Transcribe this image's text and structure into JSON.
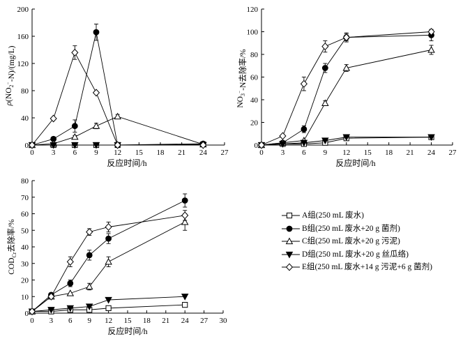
{
  "series_meta": [
    {
      "id": "A",
      "marker": "square-open"
    },
    {
      "id": "B",
      "marker": "circle-filled"
    },
    {
      "id": "C",
      "marker": "triangle-open"
    },
    {
      "id": "D",
      "marker": "triangle-down-filled"
    },
    {
      "id": "E",
      "marker": "diamond-open"
    }
  ],
  "legend": [
    {
      "id": "A",
      "label": "A组(250 mL 废水)"
    },
    {
      "id": "B",
      "label": "B组(250 mL 废水+20 g 菌剂)"
    },
    {
      "id": "C",
      "label": "C组(250 mL 废水+20 g 污泥)"
    },
    {
      "id": "D",
      "label": "D组(250 mL 废水+20 g 丝瓜络)"
    },
    {
      "id": "E",
      "label": "E组(250 mL 废水+14 g 污泥+6 g 菌剂)"
    }
  ],
  "chart_data": [
    {
      "type": "line",
      "ylabel": "ρ(NO₂⁻-N)/(mg/L)",
      "xlabel": "反应时间/h",
      "xlim": [
        0,
        27
      ],
      "ylim": [
        0,
        200
      ],
      "xticks": [
        0,
        3,
        6,
        9,
        12,
        15,
        18,
        21,
        24,
        27
      ],
      "yticks": [
        0,
        40,
        80,
        120,
        160,
        200
      ],
      "series": [
        {
          "name": "A",
          "x": [
            0,
            3,
            6,
            9,
            12,
            24
          ],
          "y": [
            0,
            0,
            0,
            0,
            0,
            1
          ],
          "err": [
            0,
            0,
            0,
            0,
            0,
            0
          ]
        },
        {
          "name": "B",
          "x": [
            0,
            3,
            6,
            9,
            12,
            24
          ],
          "y": [
            0,
            9,
            28,
            166,
            0,
            2
          ],
          "err": [
            0,
            2,
            9,
            12,
            0,
            0
          ]
        },
        {
          "name": "C",
          "x": [
            0,
            3,
            6,
            9,
            12,
            24
          ],
          "y": [
            0,
            2,
            12,
            28,
            42,
            1
          ],
          "err": [
            0,
            0,
            2,
            4,
            3,
            0
          ]
        },
        {
          "name": "D",
          "x": [
            0,
            3,
            6,
            9,
            12,
            24
          ],
          "y": [
            0,
            0,
            0,
            0,
            0,
            0
          ],
          "err": [
            0,
            0,
            0,
            0,
            0,
            0
          ]
        },
        {
          "name": "E",
          "x": [
            0,
            3,
            6,
            9,
            12,
            24
          ],
          "y": [
            0,
            39,
            136,
            77,
            0,
            0
          ],
          "err": [
            0,
            0,
            10,
            0,
            0,
            0
          ]
        }
      ]
    },
    {
      "type": "line",
      "ylabel": "NO₃⁻-N去除率/%",
      "xlabel": "反应时间/h",
      "xlim": [
        0,
        27
      ],
      "ylim": [
        0,
        120
      ],
      "xticks": [
        0,
        3,
        6,
        9,
        12,
        15,
        18,
        21,
        24,
        27
      ],
      "yticks": [
        0,
        20,
        40,
        60,
        80,
        100,
        120
      ],
      "series": [
        {
          "name": "A",
          "x": [
            0,
            3,
            6,
            9,
            12,
            24
          ],
          "y": [
            0,
            1,
            1,
            2,
            6,
            7
          ],
          "err": [
            0,
            0,
            0,
            0,
            0,
            0
          ]
        },
        {
          "name": "B",
          "x": [
            0,
            3,
            6,
            9,
            12,
            24
          ],
          "y": [
            0,
            2,
            14,
            68,
            95,
            97
          ],
          "err": [
            0,
            0,
            3,
            4,
            3,
            5
          ]
        },
        {
          "name": "C",
          "x": [
            0,
            3,
            6,
            9,
            12,
            24
          ],
          "y": [
            0,
            2,
            4,
            37,
            68,
            84
          ],
          "err": [
            0,
            0,
            0,
            2,
            3,
            4
          ]
        },
        {
          "name": "D",
          "x": [
            0,
            3,
            6,
            9,
            12,
            24
          ],
          "y": [
            0,
            1,
            2,
            4,
            7,
            7
          ],
          "err": [
            0,
            0,
            0,
            0,
            0,
            0
          ]
        },
        {
          "name": "E",
          "x": [
            0,
            3,
            6,
            9,
            12,
            24
          ],
          "y": [
            0,
            8,
            54,
            87,
            95,
            100
          ],
          "err": [
            0,
            0,
            6,
            5,
            4,
            2
          ]
        }
      ]
    },
    {
      "type": "line",
      "ylabel": "COD_Cr去除率/%",
      "xlabel": "反应时间/h",
      "xlim": [
        0,
        30
      ],
      "ylim": [
        0,
        80
      ],
      "xticks": [
        0,
        3,
        6,
        9,
        12,
        15,
        18,
        21,
        24,
        27,
        30
      ],
      "yticks": [
        0,
        10,
        20,
        30,
        40,
        50,
        60,
        70,
        80
      ],
      "series": [
        {
          "name": "A",
          "x": [
            0,
            3,
            6,
            9,
            12,
            24
          ],
          "y": [
            1,
            1,
            2,
            2,
            3,
            5
          ],
          "err": [
            0,
            0,
            0,
            0,
            0,
            0
          ]
        },
        {
          "name": "B",
          "x": [
            0,
            3,
            6,
            9,
            12,
            24
          ],
          "y": [
            1,
            11,
            18,
            35,
            45,
            68
          ],
          "err": [
            0,
            1,
            2,
            3,
            3,
            4
          ]
        },
        {
          "name": "C",
          "x": [
            0,
            3,
            6,
            9,
            12,
            24
          ],
          "y": [
            1,
            10,
            12,
            16,
            31,
            55
          ],
          "err": [
            0,
            0,
            0,
            2,
            3,
            5
          ]
        },
        {
          "name": "D",
          "x": [
            0,
            3,
            6,
            9,
            12,
            24
          ],
          "y": [
            1,
            2,
            3,
            4,
            8,
            10
          ],
          "err": [
            0,
            0,
            0,
            0,
            0,
            0
          ]
        },
        {
          "name": "E",
          "x": [
            0,
            3,
            6,
            9,
            12,
            24
          ],
          "y": [
            1,
            10,
            31,
            49,
            52,
            59
          ],
          "err": [
            0,
            0,
            3,
            2,
            3,
            3
          ]
        }
      ]
    }
  ]
}
